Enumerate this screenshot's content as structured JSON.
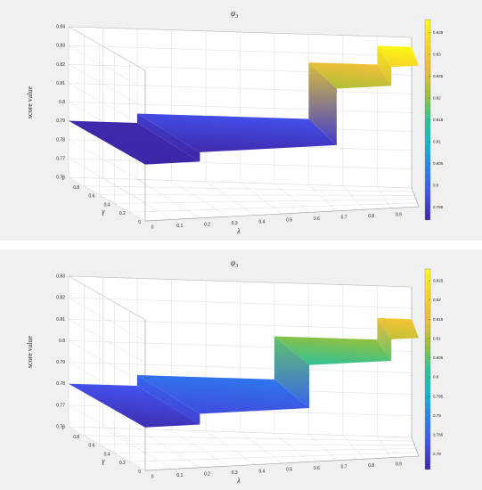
{
  "chart_data": [
    {
      "type": "surface",
      "title": "ψ",
      "title_sub": "3",
      "zlabel": "score value",
      "xlabel": "λ",
      "ylabel": "γ",
      "x_ticks": [
        "0",
        "0.1",
        "0.2",
        "0.3",
        "0.4",
        "0.5",
        "0.6",
        "0.7",
        "0.8",
        "0.9"
      ],
      "y_ticks": [
        "0",
        "0.2",
        "0.4",
        "0.6",
        "0.8",
        "1"
      ],
      "z_ticks": [
        "0.76",
        "0.77",
        "0.78",
        "0.79",
        "0.8",
        "0.81",
        "0.82",
        "0.83",
        "0.84"
      ],
      "zlim": [
        0.76,
        0.84
      ],
      "colorbar": {
        "ticks": [
          "0.795",
          "0.8",
          "0.805",
          "0.81",
          "0.815",
          "0.82",
          "0.825",
          "0.83",
          "0.835"
        ],
        "range": [
          0.792,
          0.838
        ]
      },
      "steps": [
        {
          "x": [
            0,
            0.2
          ],
          "z": 0.79
        },
        {
          "x": [
            0.2,
            0.7
          ],
          "z": 0.795
        },
        {
          "x": [
            0.7,
            0.9
          ],
          "z": 0.825
        },
        {
          "x": [
            0.9,
            1.0
          ],
          "z": 0.835
        }
      ],
      "grid": true
    },
    {
      "type": "surface",
      "title": "ψ",
      "title_sub": "3",
      "zlabel": "score value",
      "xlabel": "λ",
      "ylabel": "γ",
      "x_ticks": [
        "0",
        "0.1",
        "0.2",
        "0.3",
        "0.4",
        "0.5",
        "0.6",
        "0.7",
        "0.8",
        "0.9"
      ],
      "y_ticks": [
        "0",
        "0.2",
        "0.4",
        "0.6",
        "0.8",
        "1"
      ],
      "z_ticks": [
        "0.76",
        "0.77",
        "0.78",
        "0.79",
        "0.8",
        "0.81",
        "0.82",
        "0.83"
      ],
      "zlim": [
        0.76,
        0.83
      ],
      "colorbar": {
        "ticks": [
          "0.78",
          "0.785",
          "0.79",
          "0.795",
          "0.8",
          "0.805",
          "0.81",
          "0.815",
          "0.82",
          "0.825"
        ],
        "range": [
          0.776,
          0.828
        ]
      },
      "steps": [
        {
          "x": [
            0,
            0.2
          ],
          "z": 0.78
        },
        {
          "x": [
            0.2,
            0.6
          ],
          "z": 0.785
        },
        {
          "x": [
            0.6,
            0.9
          ],
          "z": 0.805
        },
        {
          "x": [
            0.9,
            1.0
          ],
          "z": 0.815
        }
      ],
      "grid": true
    }
  ],
  "colors": {
    "background": "#f0f0f0",
    "axes_face": "#ffffff",
    "grid": "#dcdcdc",
    "text": "#262626",
    "colormap": [
      "#3e26a8",
      "#4352ee",
      "#2a7eee",
      "#13b5ca",
      "#2cc497",
      "#9dc136",
      "#efbb3b",
      "#f9d324",
      "#f9fb14"
    ]
  }
}
